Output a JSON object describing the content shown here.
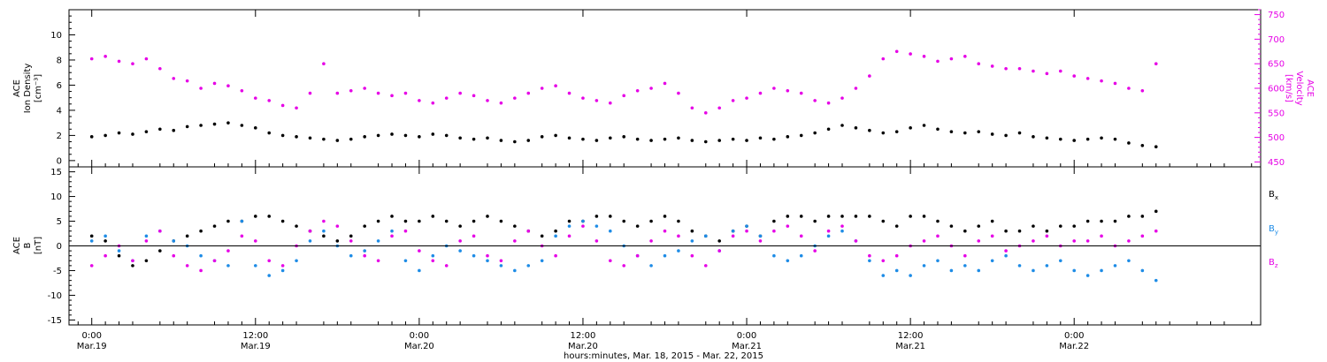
{
  "chart_data": [
    {
      "type": "scatter",
      "panel": "top",
      "ylabel_left": [
        "ACE",
        "Ion Density",
        "[cm⁻³]"
      ],
      "ylabel_right": [
        "ACE",
        "Velocity",
        "[km/s]"
      ],
      "ylim_left": [
        -0.5,
        12
      ],
      "yticks_left": [
        "0",
        "2",
        "4",
        "6",
        "8",
        "10"
      ],
      "ylim_right": [
        440,
        760
      ],
      "yticks_right": [
        "450",
        "500",
        "550",
        "600",
        "650",
        "700",
        "750"
      ],
      "series": [
        {
          "axis": "left",
          "color": "#000000",
          "x": [
            0,
            3,
            6,
            9,
            12,
            15,
            18,
            21,
            24,
            27,
            30,
            33,
            36,
            39,
            42,
            45,
            48,
            51,
            54,
            57,
            60,
            63,
            66,
            69,
            72,
            75,
            78,
            81,
            84,
            87,
            90,
            93,
            96,
            99,
            102,
            105,
            108,
            111,
            114,
            117,
            120,
            123,
            126,
            129,
            132,
            135,
            138,
            141,
            144,
            147,
            150,
            153,
            156,
            159,
            162,
            165,
            168,
            171,
            174,
            177,
            180,
            183,
            186,
            189,
            192,
            195,
            198,
            201,
            204,
            207,
            210,
            213,
            216,
            219,
            222,
            225,
            228,
            231,
            234
          ],
          "y": [
            1.9,
            2.0,
            2.2,
            2.1,
            2.3,
            2.5,
            2.4,
            2.7,
            2.8,
            2.9,
            3.0,
            2.8,
            2.6,
            2.2,
            2.0,
            1.9,
            1.8,
            1.7,
            1.6,
            1.7,
            1.9,
            2.0,
            2.1,
            2.0,
            1.9,
            2.1,
            2.0,
            1.8,
            1.7,
            1.8,
            1.6,
            1.5,
            1.6,
            1.9,
            2.0,
            1.8,
            1.7,
            1.6,
            1.8,
            1.9,
            1.7,
            1.6,
            1.7,
            1.8,
            1.6,
            1.5,
            1.6,
            1.7,
            1.6,
            1.8,
            1.7,
            1.9,
            2.0,
            2.2,
            2.5,
            2.8,
            2.6,
            2.4,
            2.2,
            2.3,
            2.6,
            2.8,
            2.5,
            2.3,
            2.2,
            2.3,
            2.1,
            2.0,
            2.2,
            1.9,
            1.8,
            1.7,
            1.6,
            1.7,
            1.8,
            1.7,
            1.4,
            1.2,
            1.1
          ]
        },
        {
          "axis": "right",
          "color": "#e600e6",
          "x": [
            0,
            3,
            6,
            9,
            12,
            15,
            18,
            21,
            24,
            27,
            30,
            33,
            36,
            39,
            42,
            45,
            48,
            51,
            54,
            57,
            60,
            63,
            66,
            69,
            72,
            75,
            78,
            81,
            84,
            87,
            90,
            93,
            96,
            99,
            102,
            105,
            108,
            111,
            114,
            117,
            120,
            123,
            126,
            129,
            132,
            135,
            138,
            141,
            144,
            147,
            150,
            153,
            156,
            159,
            162,
            165,
            168,
            171,
            174,
            177,
            180,
            183,
            186,
            189,
            192,
            195,
            198,
            201,
            204,
            207,
            210,
            213,
            216,
            219,
            222,
            225,
            228,
            231,
            234
          ],
          "y": [
            660,
            665,
            655,
            650,
            660,
            640,
            620,
            615,
            600,
            610,
            605,
            595,
            580,
            575,
            565,
            560,
            590,
            650,
            590,
            595,
            600,
            590,
            585,
            590,
            575,
            570,
            580,
            590,
            585,
            575,
            570,
            580,
            590,
            600,
            605,
            590,
            580,
            575,
            570,
            585,
            595,
            600,
            610,
            590,
            560,
            550,
            560,
            575,
            580,
            590,
            600,
            595,
            590,
            575,
            570,
            580,
            600,
            625,
            660,
            675,
            670,
            665,
            655,
            660,
            665,
            650,
            645,
            640,
            640,
            635,
            630,
            635,
            625,
            620,
            615,
            610,
            600,
            595,
            650
          ]
        }
      ]
    },
    {
      "type": "scatter",
      "panel": "bottom",
      "ylabel_left": [
        "ACE",
        "B",
        "[nT]"
      ],
      "ylim_left": [
        -16,
        16
      ],
      "yticks_left": [
        "-15",
        "-10",
        "-5",
        "0",
        "5",
        "10",
        "15"
      ],
      "legend": [
        {
          "label": "B",
          "sub": "x",
          "color": "#000000"
        },
        {
          "label": "B",
          "sub": "y",
          "color": "#1e8ce6"
        },
        {
          "label": "B",
          "sub": "z",
          "color": "#e600e6"
        }
      ],
      "series": [
        {
          "name": "Bx",
          "color": "#000000",
          "x": [
            0,
            3,
            6,
            9,
            12,
            15,
            18,
            21,
            24,
            27,
            30,
            33,
            36,
            39,
            42,
            45,
            48,
            51,
            54,
            57,
            60,
            63,
            66,
            69,
            72,
            75,
            78,
            81,
            84,
            87,
            90,
            93,
            96,
            99,
            102,
            105,
            108,
            111,
            114,
            117,
            120,
            123,
            126,
            129,
            132,
            135,
            138,
            141,
            144,
            147,
            150,
            153,
            156,
            159,
            162,
            165,
            168,
            171,
            174,
            177,
            180,
            183,
            186,
            189,
            192,
            195,
            198,
            201,
            204,
            207,
            210,
            213,
            216,
            219,
            222,
            225,
            228,
            231,
            234
          ],
          "y": [
            2,
            1,
            -2,
            -4,
            -3,
            -1,
            1,
            2,
            3,
            4,
            5,
            5,
            6,
            6,
            5,
            4,
            3,
            2,
            1,
            2,
            4,
            5,
            6,
            5,
            5,
            6,
            5,
            4,
            5,
            6,
            5,
            4,
            3,
            2,
            3,
            5,
            5,
            6,
            6,
            5,
            4,
            5,
            6,
            5,
            3,
            2,
            1,
            3,
            4,
            2,
            5,
            6,
            6,
            5,
            6,
            6,
            6,
            6,
            5,
            4,
            6,
            6,
            5,
            4,
            3,
            4,
            5,
            3,
            3,
            4,
            3,
            4,
            4,
            5,
            5,
            5,
            6,
            6,
            7
          ]
        },
        {
          "name": "By",
          "color": "#1e8ce6",
          "x": [
            0,
            3,
            6,
            9,
            12,
            15,
            18,
            21,
            24,
            27,
            30,
            33,
            36,
            39,
            42,
            45,
            48,
            51,
            54,
            57,
            60,
            63,
            66,
            69,
            72,
            75,
            78,
            81,
            84,
            87,
            90,
            93,
            96,
            99,
            102,
            105,
            108,
            111,
            114,
            117,
            120,
            123,
            126,
            129,
            132,
            135,
            138,
            141,
            144,
            147,
            150,
            153,
            156,
            159,
            162,
            165,
            168,
            171,
            174,
            177,
            180,
            183,
            186,
            189,
            192,
            195,
            198,
            201,
            204,
            207,
            210,
            213,
            216,
            219,
            222,
            225,
            228,
            231,
            234
          ],
          "y": [
            1,
            2,
            -1,
            -3,
            2,
            3,
            1,
            0,
            -2,
            -3,
            -4,
            5,
            -4,
            -6,
            -5,
            -3,
            1,
            3,
            0,
            -2,
            -1,
            1,
            3,
            -3,
            -5,
            -2,
            0,
            -1,
            -2,
            -3,
            -4,
            -5,
            -4,
            -3,
            2,
            4,
            5,
            4,
            3,
            0,
            -2,
            -4,
            -2,
            -1,
            1,
            2,
            -1,
            3,
            4,
            2,
            -2,
            -3,
            -2,
            0,
            2,
            3,
            1,
            -3,
            -6,
            -5,
            -6,
            -4,
            -3,
            -5,
            -4,
            -5,
            -3,
            -2,
            -4,
            -5,
            -4,
            -3,
            -5,
            -6,
            -5,
            -4,
            -3,
            -5,
            -7
          ]
        },
        {
          "name": "Bz",
          "color": "#e600e6",
          "x": [
            0,
            3,
            6,
            9,
            12,
            15,
            18,
            21,
            24,
            27,
            30,
            33,
            36,
            39,
            42,
            45,
            48,
            51,
            54,
            57,
            60,
            63,
            66,
            69,
            72,
            75,
            78,
            81,
            84,
            87,
            90,
            93,
            96,
            99,
            102,
            105,
            108,
            111,
            114,
            117,
            120,
            123,
            126,
            129,
            132,
            135,
            138,
            141,
            144,
            147,
            150,
            153,
            156,
            159,
            162,
            165,
            168,
            171,
            174,
            177,
            180,
            183,
            186,
            189,
            192,
            195,
            198,
            201,
            204,
            207,
            210,
            213,
            216,
            219,
            222,
            225,
            228,
            231,
            234
          ],
          "y": [
            -4,
            -2,
            0,
            -3,
            1,
            3,
            -2,
            -4,
            -5,
            -3,
            -1,
            2,
            1,
            -3,
            -4,
            0,
            3,
            5,
            4,
            1,
            -2,
            -3,
            2,
            3,
            -1,
            -3,
            -4,
            1,
            2,
            -2,
            -3,
            1,
            3,
            0,
            -2,
            2,
            4,
            1,
            -3,
            -4,
            -2,
            1,
            3,
            2,
            -2,
            -4,
            -1,
            2,
            3,
            1,
            3,
            4,
            2,
            -1,
            3,
            4,
            1,
            -2,
            -3,
            -2,
            0,
            1,
            2,
            0,
            -2,
            1,
            2,
            -1,
            0,
            1,
            2,
            0,
            1,
            1,
            2,
            0,
            1,
            2,
            3
          ]
        }
      ]
    }
  ],
  "x_axis": {
    "range_hours": [
      -5,
      257
    ],
    "title": "hours:minutes, Mar. 18, 2015 - Mar. 22, 2015",
    "ticks": [
      {
        "h": 0,
        "time": "0:00",
        "date": "Mar.19"
      },
      {
        "h": 36,
        "time": "12:00",
        "date": "Mar.19"
      },
      {
        "h": 72,
        "time": "0:00",
        "date": "Mar.20"
      },
      {
        "h": 108,
        "time": "12:00",
        "date": "Mar.20"
      },
      {
        "h": 144,
        "time": "0:00",
        "date": "Mar.21"
      },
      {
        "h": 180,
        "time": "12:00",
        "date": "Mar.21"
      },
      {
        "h": 216,
        "time": "0:00",
        "date": "Mar.22"
      }
    ]
  }
}
